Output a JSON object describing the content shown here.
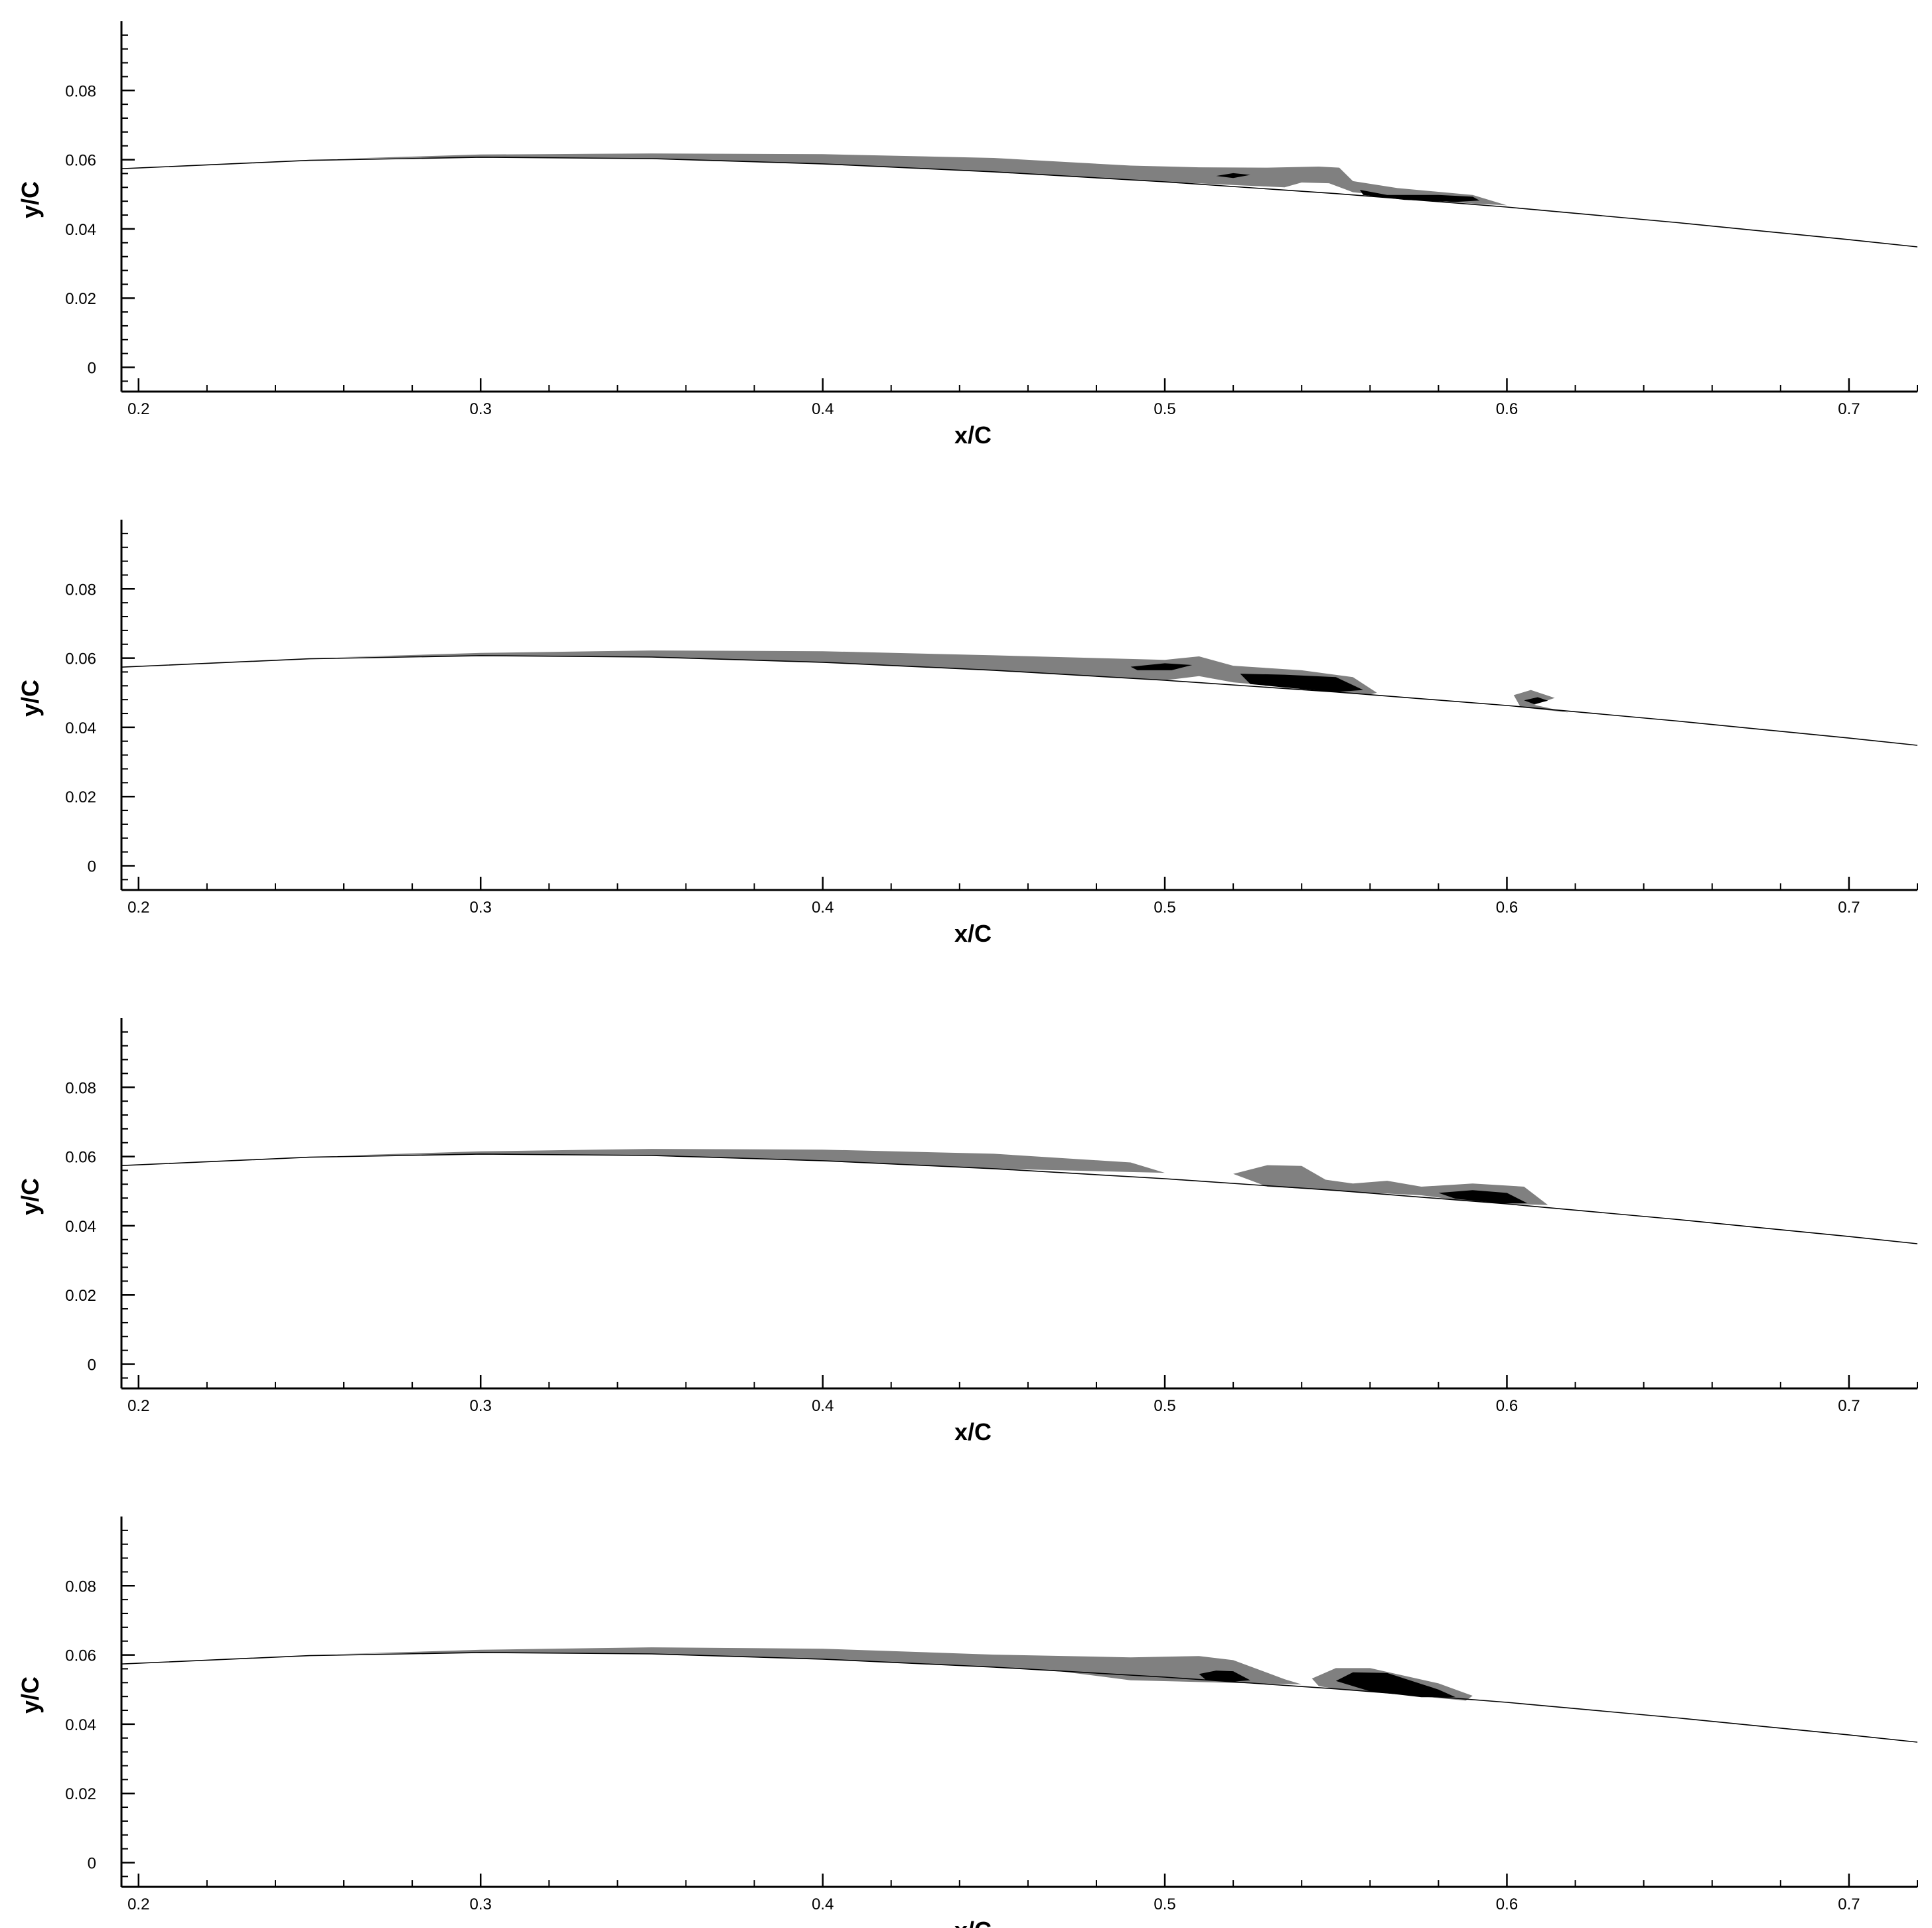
{
  "chart_data": [
    {
      "type": "contour",
      "xlabel": "x/C",
      "ylabel": "y/C",
      "xlim": [
        0.195,
        0.72
      ],
      "ylim": [
        -0.007,
        0.1
      ],
      "xticks": [
        0.2,
        0.3,
        0.4,
        0.5,
        0.6,
        0.7
      ],
      "xtick_labels": [
        "0.2",
        "0.3",
        "0.4",
        "0.5",
        "0.6",
        "0.7"
      ],
      "yticks": [
        0,
        0.02,
        0.04,
        0.06,
        0.08
      ],
      "ytick_labels": [
        "0",
        "0.02",
        "0.04",
        "0.06",
        "0.08"
      ],
      "surface": {
        "x": [
          0.195,
          0.25,
          0.3,
          0.35,
          0.4,
          0.45,
          0.5,
          0.55,
          0.6,
          0.65,
          0.7,
          0.72
        ],
        "y": [
          0.0574,
          0.0598,
          0.0607,
          0.0603,
          0.0588,
          0.0565,
          0.0536,
          0.0502,
          0.0463,
          0.0418,
          0.0369,
          0.0348
        ]
      },
      "colors": {
        "outer": "#808080",
        "core": "#000000"
      },
      "regions": [
        {
          "level": "outer",
          "x": [
            0.26,
            0.3,
            0.35,
            0.4,
            0.45,
            0.49,
            0.51,
            0.53,
            0.545,
            0.551,
            0.555,
            0.568,
            0.59,
            0.6,
            0.59,
            0.57,
            0.555,
            0.548,
            0.54,
            0.535,
            0.5,
            0.45,
            0.4,
            0.35,
            0.3,
            0.26
          ],
          "y": [
            0.0603,
            0.0615,
            0.0618,
            0.0616,
            0.0605,
            0.0583,
            0.0578,
            0.0577,
            0.058,
            0.0577,
            0.0538,
            0.0518,
            0.0498,
            0.0468,
            0.0473,
            0.049,
            0.0506,
            0.0532,
            0.0534,
            0.052,
            0.0536,
            0.0565,
            0.0588,
            0.0603,
            0.0607,
            0.0603
          ]
        },
        {
          "level": "core",
          "x": [
            0.515,
            0.52,
            0.525,
            0.52,
            0.515
          ],
          "y": [
            0.0553,
            0.0561,
            0.0556,
            0.0547,
            0.0553
          ]
        },
        {
          "level": "core",
          "x": [
            0.557,
            0.565,
            0.58,
            0.59,
            0.592,
            0.585,
            0.57,
            0.558,
            0.557
          ],
          "y": [
            0.0513,
            0.0498,
            0.0498,
            0.0493,
            0.0482,
            0.0478,
            0.0484,
            0.0498,
            0.0513
          ]
        },
        {
          "level": "outer",
          "x": [
            0.26,
            0.3,
            0.35,
            0.4,
            0.45,
            0.5,
            0.51,
            0.52,
            0.54,
            0.555,
            0.562,
            0.56,
            0.54,
            0.52,
            0.51,
            0.5,
            0.45,
            0.4,
            0.35,
            0.3,
            0.26
          ],
          "y": [
            0.0603,
            0.0615,
            0.0622,
            0.062,
            0.0608,
            0.0595,
            0.0605,
            0.0578,
            0.0565,
            0.0545,
            0.05,
            0.0495,
            0.0512,
            0.053,
            0.0548,
            0.0536,
            0.0565,
            0.0588,
            0.0603,
            0.0607,
            0.0603
          ]
        },
        {
          "level": "core",
          "x": [
            0.49,
            0.5,
            0.508,
            0.502,
            0.492,
            0.49
          ],
          "y": [
            0.0575,
            0.0585,
            0.058,
            0.0565,
            0.0565,
            0.0575
          ]
        },
        {
          "level": "core",
          "x": [
            0.522,
            0.535,
            0.55,
            0.558,
            0.55,
            0.535,
            0.525,
            0.522
          ],
          "y": [
            0.0555,
            0.0552,
            0.0545,
            0.0508,
            0.0502,
            0.0515,
            0.0525,
            0.0555
          ]
        },
        {
          "level": "outer",
          "x": [
            0.602,
            0.607,
            0.614,
            0.608,
            0.618,
            0.604,
            0.602
          ],
          "y": [
            0.0493,
            0.0508,
            0.0485,
            0.0465,
            0.0443,
            0.0458,
            0.0493
          ]
        },
        {
          "level": "core",
          "x": [
            0.605,
            0.609,
            0.612,
            0.608,
            0.605
          ],
          "y": [
            0.0478,
            0.0487,
            0.0477,
            0.0467,
            0.0478
          ]
        },
        {
          "level": "outer",
          "x": [
            0.26,
            0.3,
            0.35,
            0.4,
            0.45,
            0.49,
            0.5,
            0.45,
            0.4,
            0.35,
            0.3,
            0.26
          ],
          "y": [
            0.0603,
            0.0615,
            0.0622,
            0.062,
            0.0608,
            0.0583,
            0.0553,
            0.0565,
            0.0588,
            0.0603,
            0.0607,
            0.0603
          ]
        },
        {
          "level": "outer",
          "x": [
            0.52,
            0.53,
            0.54,
            0.547,
            0.555,
            0.565,
            0.575,
            0.59,
            0.605,
            0.612,
            0.6,
            0.585,
            0.575,
            0.565,
            0.555,
            0.545,
            0.53,
            0.52
          ],
          "y": [
            0.055,
            0.0575,
            0.0573,
            0.0533,
            0.0522,
            0.053,
            0.0513,
            0.0522,
            0.0513,
            0.046,
            0.0463,
            0.0475,
            0.0488,
            0.0493,
            0.0497,
            0.0505,
            0.0513,
            0.055
          ]
        },
        {
          "level": "core",
          "x": [
            0.58,
            0.59,
            0.6,
            0.606,
            0.598,
            0.585,
            0.58
          ],
          "y": [
            0.0495,
            0.0503,
            0.0495,
            0.0465,
            0.0465,
            0.0478,
            0.0495
          ]
        },
        {
          "level": "outer",
          "x": [
            0.26,
            0.3,
            0.35,
            0.4,
            0.45,
            0.49,
            0.51,
            0.52,
            0.535,
            0.54,
            0.525,
            0.49,
            0.47,
            0.45,
            0.4,
            0.35,
            0.3,
            0.26
          ],
          "y": [
            0.0603,
            0.0615,
            0.0622,
            0.0618,
            0.0601,
            0.0593,
            0.0597,
            0.0585,
            0.053,
            0.0515,
            0.0518,
            0.0527,
            0.0552,
            0.0565,
            0.0588,
            0.0603,
            0.0607,
            0.0603
          ]
        },
        {
          "level": "core",
          "x": [
            0.51,
            0.515,
            0.52,
            0.525,
            0.52,
            0.512,
            0.51
          ],
          "y": [
            0.0545,
            0.0555,
            0.0553,
            0.0527,
            0.0523,
            0.0528,
            0.0545
          ]
        },
        {
          "level": "outer",
          "x": [
            0.543,
            0.55,
            0.56,
            0.58,
            0.59,
            0.588,
            0.57,
            0.55,
            0.545,
            0.543
          ],
          "y": [
            0.0532,
            0.0562,
            0.0562,
            0.0518,
            0.0482,
            0.0468,
            0.0485,
            0.0502,
            0.051,
            0.0532
          ]
        },
        {
          "level": "core",
          "x": [
            0.55,
            0.555,
            0.565,
            0.58,
            0.585,
            0.575,
            0.56,
            0.55
          ],
          "y": [
            0.0525,
            0.055,
            0.0548,
            0.05,
            0.0478,
            0.0478,
            0.0495,
            0.0525
          ]
        }
      ],
      "panels": [
        {
          "regions": [
            0,
            1,
            2
          ]
        },
        {
          "regions": [
            3,
            4,
            5,
            6,
            7
          ]
        },
        {
          "regions": [
            8,
            9,
            10
          ]
        },
        {
          "regions": [
            11,
            12,
            13,
            14
          ]
        }
      ]
    }
  ]
}
